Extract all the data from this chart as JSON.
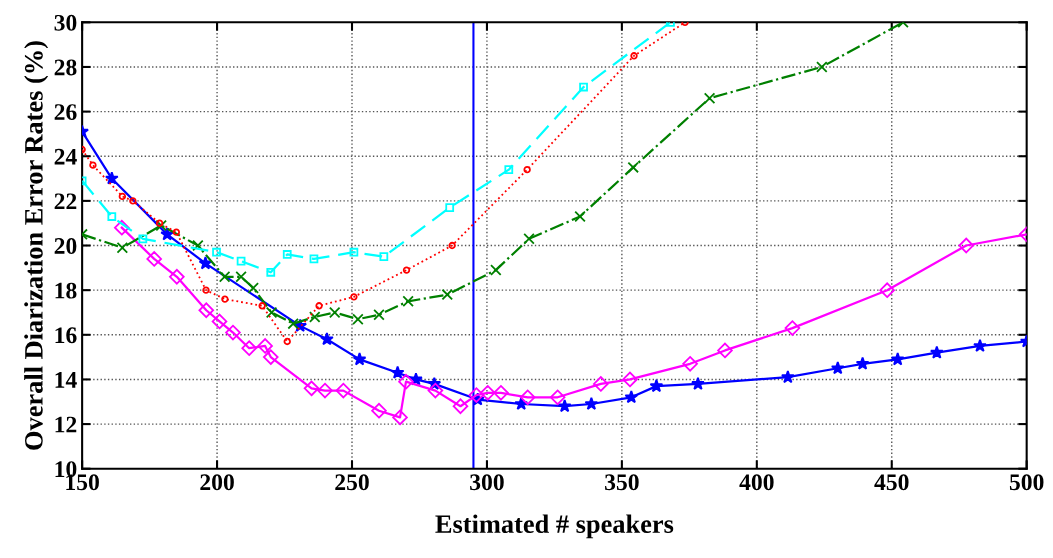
{
  "chart_data": {
    "type": "line",
    "xlabel": "Estimated # speakers",
    "ylabel": "Overall Diarization Error Rates (%)",
    "xlim": [
      150,
      500
    ],
    "xticks": [
      150,
      200,
      250,
      300,
      350,
      400,
      450,
      500
    ],
    "ylim": [
      10,
      30
    ],
    "yticks": [
      10,
      12,
      14,
      16,
      18,
      20,
      22,
      24,
      26,
      28,
      30
    ],
    "grid": true,
    "ref_lines": [
      {
        "axis": "x",
        "value": 295,
        "color": "#0000ff",
        "line_style": "solid"
      }
    ],
    "series": [
      {
        "color": "#00ffff",
        "marker": "square",
        "line_style": "dashed",
        "x": [
          150,
          161,
          172.5,
          199.8,
          208.9,
          219.9,
          226,
          235.9,
          250.7,
          261.8,
          286.2,
          308.1,
          335.8,
          368
        ],
        "values": [
          22.9,
          21.3,
          20.3,
          19.7,
          19.3,
          18.8,
          19.6,
          19.4,
          19.7,
          19.5,
          21.7,
          23.4,
          27.1,
          30
        ]
      },
      {
        "color": "#ff0000",
        "marker": "circle",
        "line_style": "dotted",
        "x": [
          150,
          154,
          164.9,
          168.8,
          178.7,
          184.9,
          195.9,
          202.9,
          216.7,
          226,
          237.8,
          250.7,
          270.2,
          287.1,
          314.9,
          354.5,
          373.4
        ],
        "values": [
          24.3,
          23.6,
          22.2,
          22.0,
          21.0,
          20.6,
          18.0,
          17.6,
          17.3,
          15.7,
          17.3,
          17.7,
          18.9,
          20.0,
          23.4,
          28.5,
          30
        ]
      },
      {
        "color": "#008000",
        "marker": "cross",
        "line_style": "dashdot",
        "x": [
          150,
          164.9,
          179.3,
          192.9,
          202.8,
          208.9,
          213.4,
          220.2,
          228.2,
          236.2,
          243.6,
          252.2,
          260,
          270.8,
          285.3,
          303.3,
          315.6,
          334.5,
          354.2,
          382.5,
          424.1,
          454.2
        ],
        "values": [
          20.5,
          19.9,
          20.9,
          20.0,
          18.6,
          18.6,
          18.1,
          17.0,
          16.5,
          16.8,
          17.0,
          16.7,
          16.9,
          17.5,
          17.8,
          18.9,
          20.3,
          21.3,
          23.5,
          26.6,
          28.0,
          30
        ]
      },
      {
        "color": "#ff00ff",
        "marker": "diamond",
        "line_style": "solid",
        "x": [
          164.7,
          176.7,
          185.1,
          196,
          200.9,
          205.9,
          211.9,
          217.8,
          219.9,
          235,
          240,
          246.8,
          260,
          267.8,
          270,
          280.9,
          290.2,
          296.1,
          300.3,
          305.2,
          315.1,
          326.2,
          342.2,
          353,
          375.3,
          388.2,
          413.2,
          448.3,
          477.6,
          500
        ],
        "values": [
          20.8,
          19.4,
          18.6,
          17.1,
          16.6,
          16.1,
          15.4,
          15.5,
          15.0,
          13.6,
          13.5,
          13.5,
          12.6,
          12.3,
          13.9,
          13.5,
          12.8,
          13.3,
          13.4,
          13.4,
          13.2,
          13.2,
          13.8,
          14.0,
          14.7,
          15.3,
          16.3,
          18.0,
          20.0,
          20.5
        ]
      },
      {
        "color": "#0000ff",
        "marker": "star",
        "line_style": "solid",
        "x": [
          150,
          161,
          181.5,
          195.7,
          230.8,
          240.7,
          252.8,
          266.9,
          273.7,
          280.5,
          296.6,
          312.7,
          328.8,
          338.7,
          353.5,
          362.8,
          378.2,
          411.5,
          430,
          439.2,
          452.2,
          466.7,
          482.7,
          500
        ],
        "values": [
          25.1,
          23.0,
          20.5,
          19.2,
          16.4,
          15.8,
          14.9,
          14.3,
          14.0,
          13.8,
          13.1,
          12.9,
          12.8,
          12.9,
          13.2,
          13.7,
          13.8,
          14.1,
          14.5,
          14.7,
          14.9,
          15.2,
          15.5,
          15.7
        ]
      }
    ]
  }
}
